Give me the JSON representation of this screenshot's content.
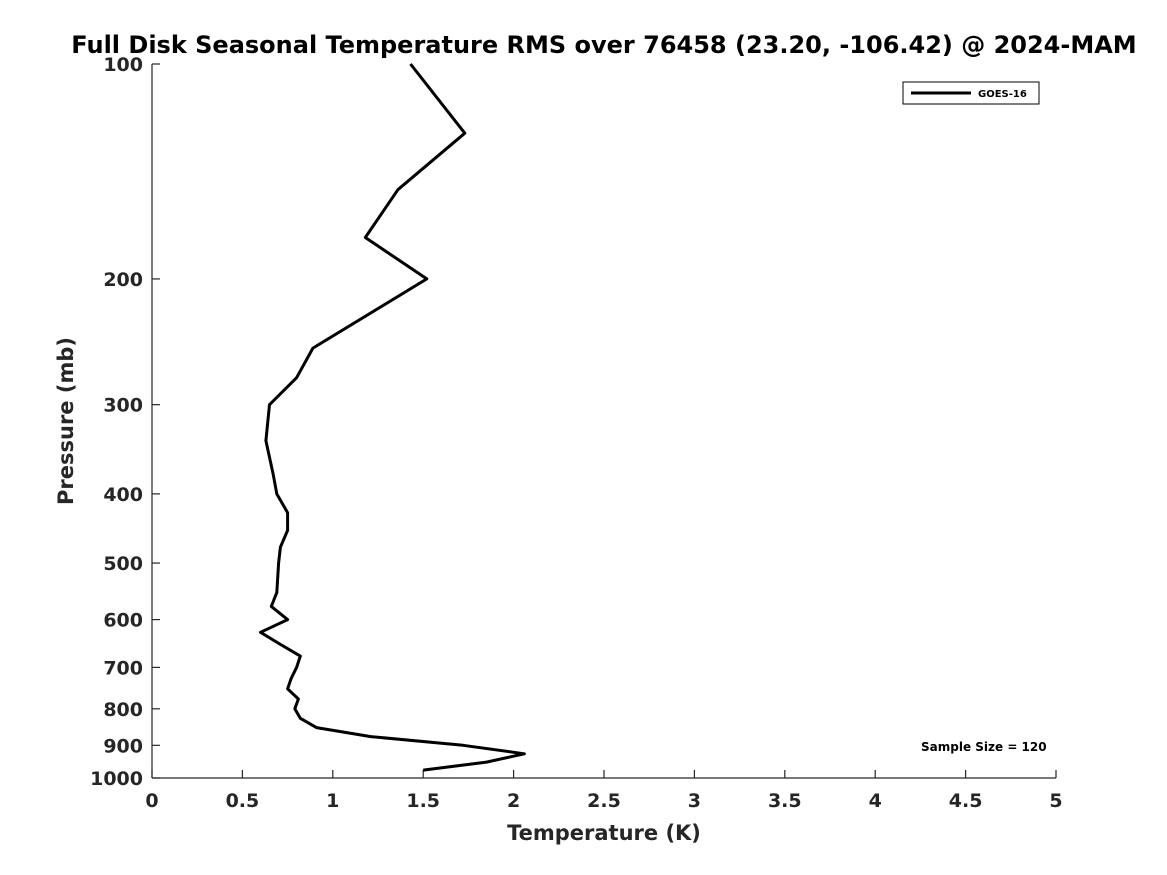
{
  "chart_data": {
    "type": "line",
    "title": "Full Disk Seasonal Temperature RMS over 76458 (23.20, -106.42) @ 2024-MAM",
    "xlabel": "Temperature (K)",
    "ylabel": "Pressure (mb)",
    "xlim": [
      0,
      5
    ],
    "ylim": [
      100,
      1000
    ],
    "y_scale": "log",
    "y_reversed": true,
    "xticks": [
      0,
      0.5,
      1,
      1.5,
      2,
      2.5,
      3,
      3.5,
      4,
      4.5,
      5
    ],
    "xtick_labels": [
      "0",
      "0.5",
      "1",
      "1.5",
      "2",
      "2.5",
      "3",
      "3.5",
      "4",
      "4.5",
      "5"
    ],
    "yticks": [
      100,
      200,
      300,
      400,
      500,
      600,
      700,
      800,
      900,
      1000
    ],
    "ytick_labels": [
      "100",
      "200",
      "300",
      "400",
      "500",
      "600",
      "700",
      "800",
      "900",
      "1000"
    ],
    "grid": false,
    "legend_position": "top-right",
    "annotation": "Sample Size = 120",
    "series": [
      {
        "name": "GOES-16",
        "color": "#000000",
        "points": [
          {
            "x": 1.43,
            "y": 100
          },
          {
            "x": 1.73,
            "y": 125
          },
          {
            "x": 1.36,
            "y": 150
          },
          {
            "x": 1.18,
            "y": 175
          },
          {
            "x": 1.52,
            "y": 200
          },
          {
            "x": 0.89,
            "y": 250
          },
          {
            "x": 0.8,
            "y": 275
          },
          {
            "x": 0.65,
            "y": 300
          },
          {
            "x": 0.63,
            "y": 337
          },
          {
            "x": 0.67,
            "y": 375
          },
          {
            "x": 0.69,
            "y": 400
          },
          {
            "x": 0.75,
            "y": 425
          },
          {
            "x": 0.75,
            "y": 450
          },
          {
            "x": 0.71,
            "y": 475
          },
          {
            "x": 0.7,
            "y": 500
          },
          {
            "x": 0.69,
            "y": 550
          },
          {
            "x": 0.66,
            "y": 575
          },
          {
            "x": 0.75,
            "y": 600
          },
          {
            "x": 0.6,
            "y": 625
          },
          {
            "x": 0.71,
            "y": 650
          },
          {
            "x": 0.82,
            "y": 675
          },
          {
            "x": 0.8,
            "y": 700
          },
          {
            "x": 0.77,
            "y": 725
          },
          {
            "x": 0.75,
            "y": 750
          },
          {
            "x": 0.81,
            "y": 775
          },
          {
            "x": 0.79,
            "y": 800
          },
          {
            "x": 0.82,
            "y": 825
          },
          {
            "x": 0.91,
            "y": 850
          },
          {
            "x": 1.21,
            "y": 875
          },
          {
            "x": 1.72,
            "y": 900
          },
          {
            "x": 2.06,
            "y": 925
          },
          {
            "x": 1.85,
            "y": 950
          },
          {
            "x": 1.5,
            "y": 975
          }
        ]
      }
    ]
  }
}
